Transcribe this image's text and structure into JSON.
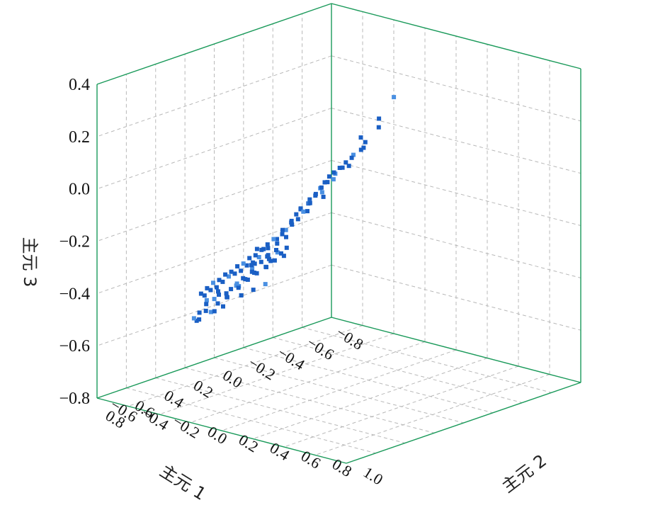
{
  "chart_data": {
    "type": "scatter3d",
    "axes": {
      "x": {
        "label": "主元 1",
        "range": [
          -0.8,
          0.8
        ],
        "ticks": [
          "−0.8",
          "−0.6",
          "−0.4",
          "−0.2",
          "0.0",
          "0.2",
          "0.4",
          "0.6",
          "0.8"
        ]
      },
      "y": {
        "label": "主元 2",
        "range": [
          -0.6,
          1.0
        ],
        "ticks": [
          "−0.6",
          "−0.4",
          "−0.2",
          "0.0",
          "0.2",
          "0.4",
          "0.6",
          "0.8",
          "1.0"
        ]
      },
      "z": {
        "label": "主元 3",
        "range": [
          -0.8,
          0.4
        ],
        "ticks": [
          "−0.8",
          "−0.6",
          "−0.4",
          "−0.2",
          "0.0",
          "0.2",
          "0.4"
        ]
      }
    },
    "grid": true,
    "colors": {
      "frame": "#1a9a5a",
      "grid": "#b8b8b8",
      "points": "#1a5fc4",
      "points_light": "#4a90e2"
    },
    "series": [
      {
        "points": [
          [
            -0.46,
            0.12,
            0.22
          ],
          [
            -0.38,
            0.1,
            0.15
          ],
          [
            -0.4,
            0.08,
            0.11
          ],
          [
            -0.34,
            0.05,
            0.06
          ],
          [
            -0.3,
            0.06,
            0.04
          ],
          [
            -0.28,
            0.03,
            0.02
          ],
          [
            -0.36,
            0.02,
            0.03
          ],
          [
            -0.3,
            0.0,
            0.0
          ],
          [
            -0.26,
            0.0,
            -0.01
          ],
          [
            -0.24,
            -0.02,
            -0.03
          ],
          [
            -0.22,
            -0.03,
            -0.05
          ],
          [
            -0.28,
            -0.04,
            -0.04
          ],
          [
            -0.2,
            -0.05,
            -0.06
          ],
          [
            -0.18,
            -0.06,
            -0.08
          ],
          [
            -0.22,
            -0.08,
            -0.09
          ],
          [
            -0.16,
            -0.07,
            -0.1
          ],
          [
            -0.14,
            -0.08,
            -0.12
          ],
          [
            -0.2,
            -0.1,
            -0.11
          ],
          [
            -0.12,
            -0.1,
            -0.14
          ],
          [
            -0.1,
            -0.09,
            -0.15
          ],
          [
            -0.14,
            -0.12,
            -0.16
          ],
          [
            -0.08,
            -0.12,
            -0.17
          ],
          [
            -0.1,
            -0.14,
            -0.18
          ],
          [
            -0.06,
            -0.13,
            -0.19
          ],
          [
            -0.16,
            -0.05,
            -0.13
          ],
          [
            -0.24,
            -0.06,
            -0.08
          ],
          [
            -0.18,
            -0.12,
            -0.14
          ],
          [
            -0.04,
            -0.1,
            -0.2
          ],
          [
            -0.02,
            -0.12,
            -0.22
          ],
          [
            -0.06,
            -0.16,
            -0.22
          ],
          [
            0.0,
            -0.14,
            -0.24
          ],
          [
            0.02,
            -0.12,
            -0.26
          ],
          [
            -0.02,
            -0.18,
            -0.25
          ],
          [
            0.04,
            -0.16,
            -0.27
          ],
          [
            0.06,
            -0.14,
            -0.28
          ],
          [
            0.02,
            -0.2,
            -0.28
          ],
          [
            0.08,
            -0.18,
            -0.3
          ],
          [
            0.04,
            -0.22,
            -0.3
          ],
          [
            0.1,
            -0.16,
            -0.32
          ],
          [
            0.06,
            -0.24,
            -0.32
          ],
          [
            0.12,
            -0.2,
            -0.33
          ],
          [
            0.08,
            -0.26,
            -0.34
          ],
          [
            0.14,
            -0.22,
            -0.35
          ],
          [
            0.1,
            -0.28,
            -0.35
          ],
          [
            0.16,
            -0.24,
            -0.36
          ],
          [
            0.12,
            -0.3,
            -0.37
          ],
          [
            0.18,
            -0.26,
            -0.38
          ],
          [
            0.14,
            -0.32,
            -0.38
          ],
          [
            0.2,
            -0.28,
            -0.39
          ],
          [
            0.16,
            -0.34,
            -0.4
          ],
          [
            0.22,
            -0.3,
            -0.4
          ],
          [
            0.18,
            -0.36,
            -0.41
          ],
          [
            0.24,
            -0.32,
            -0.42
          ],
          [
            0.2,
            -0.38,
            -0.43
          ],
          [
            0.26,
            -0.34,
            -0.44
          ],
          [
            0.22,
            -0.4,
            -0.44
          ],
          [
            0.28,
            -0.36,
            -0.45
          ],
          [
            0.24,
            -0.42,
            -0.46
          ],
          [
            0.3,
            -0.38,
            -0.47
          ],
          [
            0.26,
            -0.44,
            -0.48
          ],
          [
            0.1,
            -0.1,
            -0.3
          ],
          [
            0.14,
            -0.08,
            -0.32
          ],
          [
            0.18,
            -0.1,
            -0.34
          ],
          [
            0.22,
            -0.12,
            -0.36
          ],
          [
            0.26,
            -0.14,
            -0.38
          ],
          [
            0.3,
            -0.16,
            -0.4
          ],
          [
            0.2,
            -0.06,
            -0.3
          ],
          [
            0.24,
            -0.04,
            -0.32
          ],
          [
            0.28,
            -0.08,
            -0.34
          ],
          [
            0.32,
            -0.1,
            -0.36
          ],
          [
            0.36,
            -0.12,
            -0.38
          ],
          [
            0.4,
            -0.14,
            -0.42
          ],
          [
            0.34,
            -0.2,
            -0.44
          ],
          [
            0.38,
            -0.22,
            -0.46
          ],
          [
            0.42,
            -0.18,
            -0.4
          ],
          [
            0.06,
            -0.3,
            -0.4
          ],
          [
            0.02,
            -0.28,
            -0.38
          ],
          [
            0.08,
            -0.34,
            -0.44
          ],
          [
            0.12,
            -0.38,
            -0.48
          ],
          [
            0.16,
            -0.42,
            -0.5
          ],
          [
            0.2,
            -0.46,
            -0.52
          ],
          [
            0.0,
            -0.26,
            -0.36
          ],
          [
            -0.04,
            -0.24,
            -0.34
          ],
          [
            0.04,
            -0.2,
            -0.36
          ],
          [
            0.28,
            -0.28,
            -0.5
          ],
          [
            0.32,
            -0.32,
            -0.52
          ],
          [
            0.36,
            -0.26,
            -0.5
          ],
          [
            0.44,
            -0.24,
            -0.48
          ],
          [
            0.48,
            -0.2,
            -0.44
          ],
          [
            0.46,
            -0.28,
            -0.52
          ],
          [
            0.14,
            -0.14,
            -0.42
          ],
          [
            0.18,
            -0.18,
            -0.44
          ],
          [
            0.22,
            -0.22,
            -0.46
          ],
          [
            0.26,
            -0.2,
            -0.42
          ],
          [
            0.3,
            -0.24,
            -0.44
          ],
          [
            0.34,
            -0.28,
            -0.46
          ],
          [
            0.08,
            -0.06,
            -0.28
          ],
          [
            0.12,
            -0.04,
            -0.3
          ],
          [
            0.16,
            -0.02,
            -0.28
          ],
          [
            -0.08,
            -0.06,
            -0.14
          ],
          [
            -0.12,
            -0.02,
            -0.1
          ],
          [
            -0.04,
            -0.04,
            -0.16
          ],
          [
            -0.32,
            0.04,
            0.08
          ],
          [
            -0.26,
            0.02,
            -0.02
          ],
          [
            -0.2,
            -0.02,
            -0.04
          ],
          [
            0.1,
            -0.36,
            -0.46
          ],
          [
            0.04,
            -0.32,
            -0.42
          ],
          [
            0.0,
            -0.34,
            -0.4
          ],
          [
            0.38,
            -0.34,
            -0.54
          ],
          [
            0.42,
            -0.3,
            -0.5
          ],
          [
            0.5,
            -0.26,
            -0.5
          ],
          [
            0.24,
            -0.1,
            -0.26
          ],
          [
            0.28,
            -0.02,
            -0.24
          ],
          [
            0.32,
            -0.06,
            -0.3
          ],
          [
            -0.1,
            -0.2,
            -0.24
          ],
          [
            -0.14,
            -0.16,
            -0.2
          ],
          [
            -0.06,
            -0.22,
            -0.28
          ]
        ]
      }
    ]
  }
}
